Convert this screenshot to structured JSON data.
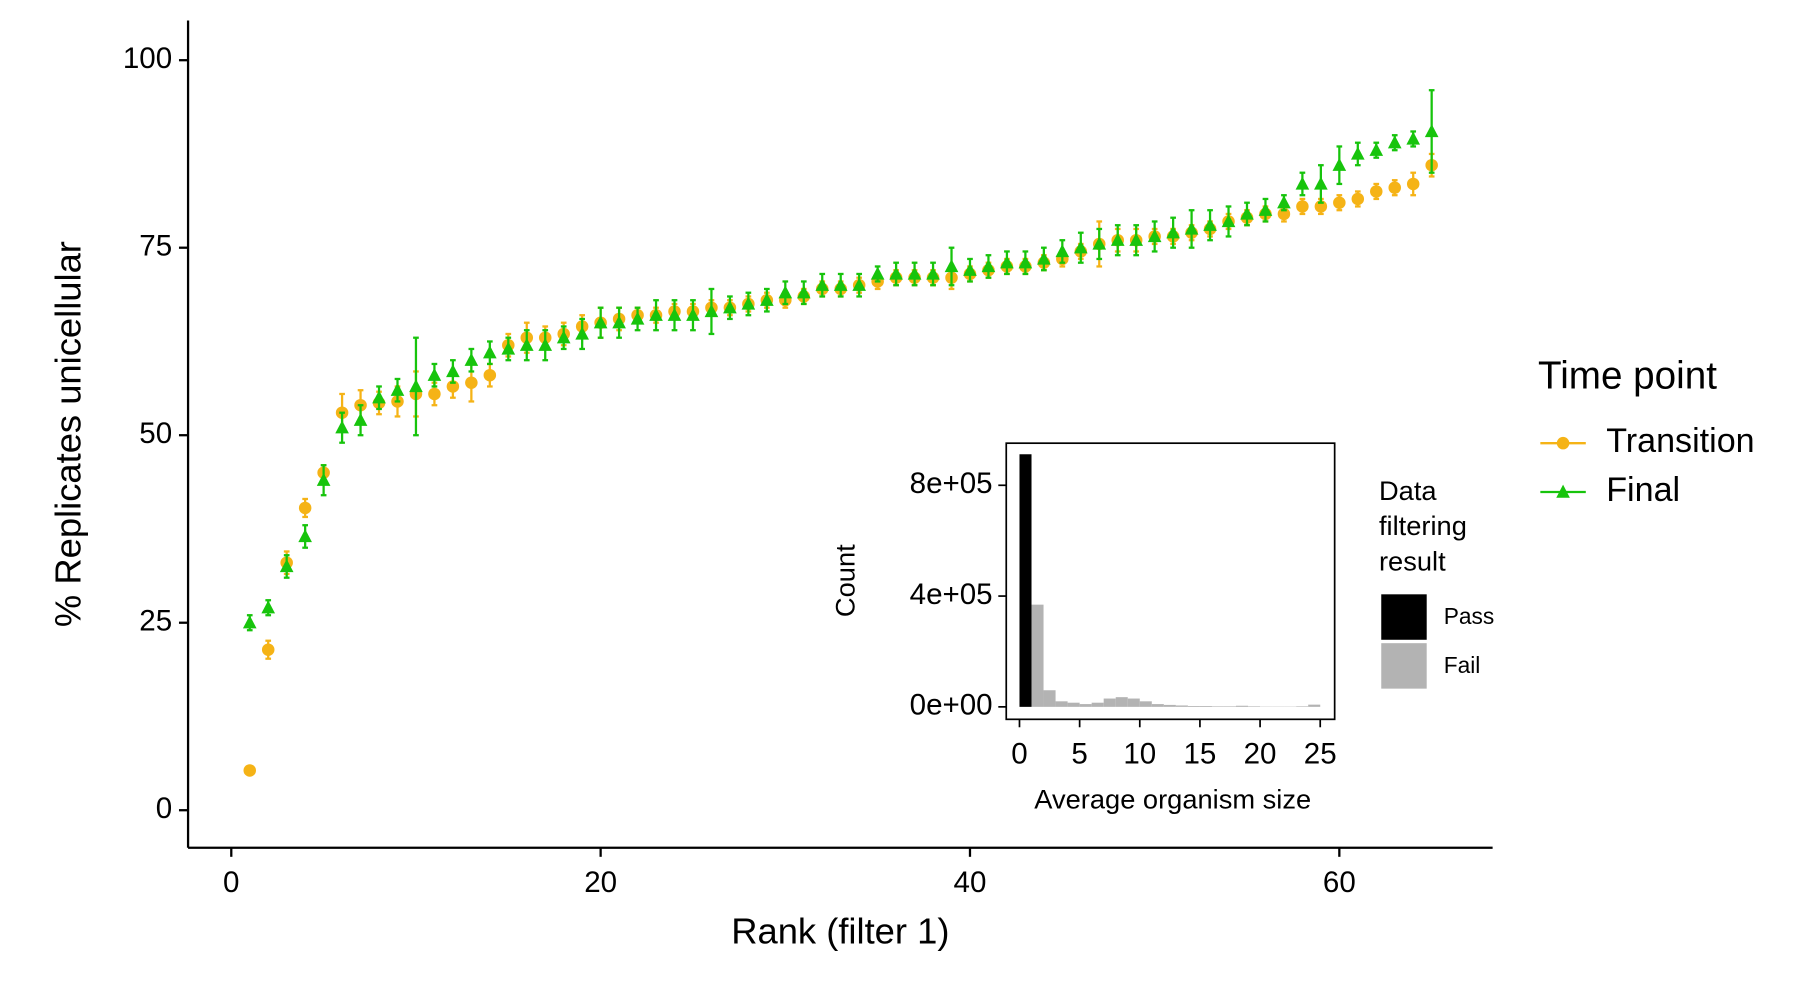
{
  "chart_data": [
    {
      "type": "scatter",
      "x_label": "Rank (filter 1)",
      "y_label": "% Replicates unicellular",
      "legend_title": "Time point",
      "xlim": [
        -2.34,
        68.3
      ],
      "ylim": [
        -5,
        105.3
      ],
      "xticks": [
        0,
        20,
        40,
        60
      ],
      "yticks": [
        0,
        25,
        50,
        75,
        100
      ],
      "x": [
        1,
        2,
        3,
        4,
        5,
        6,
        7,
        8,
        9,
        10,
        11,
        12,
        13,
        14,
        15,
        16,
        17,
        18,
        19,
        20,
        21,
        22,
        23,
        24,
        25,
        26,
        27,
        28,
        29,
        30,
        31,
        32,
        33,
        34,
        35,
        36,
        37,
        38,
        39,
        40,
        41,
        42,
        43,
        44,
        45,
        46,
        47,
        48,
        49,
        50,
        51,
        52,
        53,
        54,
        55,
        56,
        57,
        58,
        59,
        60,
        61,
        62,
        63,
        64,
        65
      ],
      "series": [
        {
          "name": "Transition",
          "color": "#f5b316",
          "marker": "circle",
          "values": [
            5.3,
            21.4,
            33,
            40.3,
            45,
            53,
            54,
            54.3,
            54.5,
            55.5,
            55.5,
            56.5,
            57,
            58,
            62,
            63,
            63,
            63.5,
            64.5,
            65,
            65.5,
            66,
            66,
            66.5,
            66.5,
            67,
            67,
            67.5,
            68,
            68,
            68.5,
            69.5,
            69.5,
            70,
            70.5,
            71,
            71,
            71,
            71,
            71.5,
            72,
            72.5,
            72.5,
            73,
            73.5,
            74.5,
            75.5,
            76,
            76,
            76.5,
            76.5,
            77,
            77.5,
            78.5,
            79,
            79.5,
            79.5,
            80.5,
            80.5,
            81,
            81.5,
            82.5,
            83,
            83.5,
            86
          ],
          "errors": [
            0.4,
            1.2,
            1.5,
            1.2,
            1,
            2.5,
            2,
            1.5,
            2,
            3,
            1.5,
            1.5,
            2.5,
            1.5,
            1.5,
            2,
            1.5,
            1.5,
            1.5,
            2,
            1.5,
            1,
            1,
            1,
            1,
            1,
            1,
            1,
            1,
            1,
            1,
            1,
            1,
            1,
            1,
            1,
            1,
            1,
            1.5,
            1,
            1,
            1,
            1,
            1,
            1,
            1,
            3,
            1.5,
            1.5,
            1,
            1,
            1,
            1,
            1,
            1,
            1,
            1,
            1,
            1,
            1,
            1,
            1,
            1,
            1.5,
            1.5
          ]
        },
        {
          "name": "Final",
          "color": "#17c40c",
          "marker": "triangle",
          "values": [
            25,
            27,
            32.5,
            36.5,
            44,
            51,
            52,
            55,
            56,
            56.5,
            58,
            58.5,
            60,
            61,
            61.5,
            62,
            62,
            63,
            63.5,
            65,
            65,
            65.5,
            66,
            66,
            66,
            66.5,
            67,
            67.5,
            68,
            69,
            69,
            70,
            70,
            70,
            71.5,
            71.5,
            71.5,
            71.5,
            72.5,
            72,
            72.5,
            73,
            73,
            73.5,
            74.5,
            75,
            75.5,
            76,
            76,
            76.5,
            77,
            77.5,
            78,
            78.5,
            79.5,
            80,
            81,
            83.5,
            83.5,
            86,
            87.5,
            88,
            89,
            89.5,
            90.5
          ],
          "errors": [
            1,
            1,
            1.5,
            1.5,
            2,
            2,
            2,
            1.5,
            1.5,
            6.5,
            1.5,
            1.5,
            1.5,
            1.5,
            1.5,
            2,
            2,
            1.5,
            2,
            2,
            2,
            1.5,
            2,
            2,
            2,
            3,
            1.5,
            1.5,
            1.5,
            1.5,
            1.5,
            1.5,
            1.5,
            1.5,
            1,
            1.5,
            1.5,
            1.5,
            2.5,
            1.5,
            1.5,
            1.5,
            1.5,
            1.5,
            1.5,
            2,
            2,
            2,
            2,
            2,
            2,
            2.5,
            2,
            2,
            1.5,
            1.5,
            1,
            1.5,
            2.5,
            2.5,
            1.5,
            1,
            1,
            1,
            5.5
          ]
        }
      ]
    },
    {
      "type": "histogram",
      "x_label": "Average organism size",
      "y_label": "Count",
      "legend_title": "Data filtering result",
      "xlim": [
        -1.1,
        26.2
      ],
      "ylim": [
        -45000,
        952000
      ],
      "xticks": [
        0,
        5,
        10,
        15,
        20,
        25
      ],
      "yticks": [
        {
          "value": 0,
          "label": "0e+00"
        },
        {
          "value": 400000,
          "label": "4e+05"
        },
        {
          "value": 800000,
          "label": "8e+05"
        }
      ],
      "bins": [
        0,
        1,
        2,
        3,
        4,
        5,
        6,
        7,
        8,
        9,
        10,
        11,
        12,
        13,
        14,
        15,
        16,
        17,
        18,
        19,
        20,
        21,
        22,
        23,
        24,
        25
      ],
      "series": [
        {
          "name": "Pass",
          "color": "#000000",
          "values": [
            912000,
            0,
            0,
            0,
            0,
            0,
            0,
            0,
            0,
            0,
            0,
            0,
            0,
            0,
            0,
            0,
            0,
            0,
            0,
            0,
            0,
            0,
            0,
            0,
            0
          ]
        },
        {
          "name": "Fail",
          "color": "#b3b3b3",
          "values": [
            0,
            369000,
            60000,
            20000,
            15000,
            10000,
            15000,
            30000,
            35000,
            30000,
            20000,
            10000,
            7000,
            5000,
            3000,
            3000,
            2000,
            2000,
            4000,
            2000,
            1000,
            1000,
            1000,
            2000,
            8000
          ]
        }
      ]
    }
  ]
}
